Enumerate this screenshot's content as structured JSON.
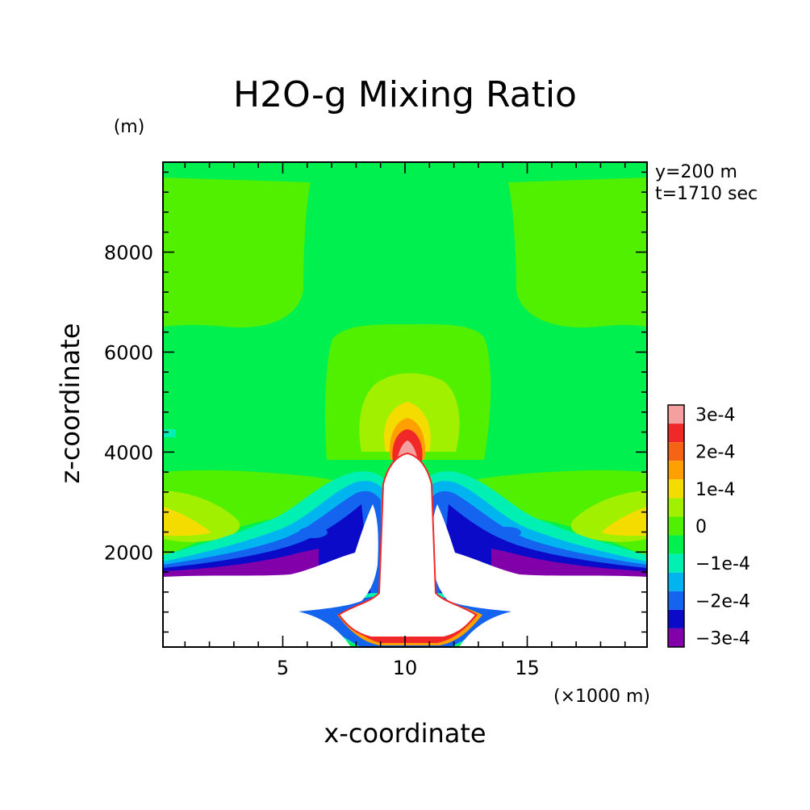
{
  "chart_data": {
    "type": "heatmap",
    "title": "H2O-g Mixing Ratio",
    "ylabel": "z-coordinate",
    "yunit": "(m)",
    "xlabel": "x-coordinate",
    "xunit": "(×1000 m)",
    "annotations": [
      "y=200 m",
      "t=1710 sec"
    ],
    "xlim": [
      0.1,
      19.9
    ],
    "ylim": [
      100,
      9800
    ],
    "xticks": [
      {
        "value": 5,
        "label": "5"
      },
      {
        "value": 10,
        "label": "10"
      },
      {
        "value": 15,
        "label": "15"
      }
    ],
    "yticks": [
      {
        "value": 2000,
        "label": "2000"
      },
      {
        "value": 4000,
        "label": "4000"
      },
      {
        "value": 6000,
        "label": "6000"
      },
      {
        "value": 8000,
        "label": "8000"
      }
    ],
    "colorbar": {
      "levels": [
        {
          "label": "3e-4",
          "color": "#f5a0a0"
        },
        {
          "label": "",
          "color": "#f02828"
        },
        {
          "label": "2e-4",
          "color": "#f56414"
        },
        {
          "label": "",
          "color": "#ffa000"
        },
        {
          "label": "1e-4",
          "color": "#f5dc00"
        },
        {
          "label": "",
          "color": "#a0f000"
        },
        {
          "label": "0",
          "color": "#50f000"
        },
        {
          "label": "",
          "color": "#00f050"
        },
        {
          "label": "−1e-4",
          "color": "#00f0b4"
        },
        {
          "label": "",
          "color": "#00b4f0"
        },
        {
          "label": "−2e-4",
          "color": "#1464f0"
        },
        {
          "label": "",
          "color": "#0a0ac8"
        },
        {
          "label": "−3e-4",
          "color": "#8200aa"
        }
      ]
    }
  }
}
